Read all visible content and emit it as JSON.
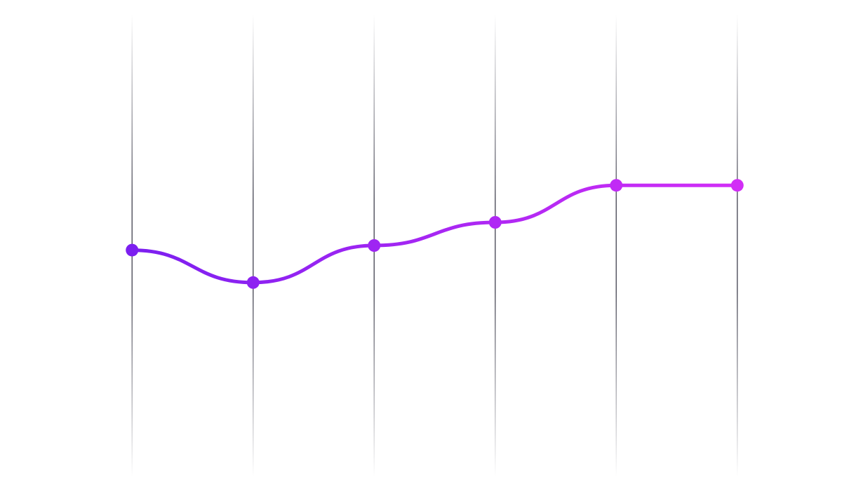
{
  "chart_data": {
    "type": "line",
    "categories": [
      null,
      null,
      null,
      null,
      null,
      null
    ],
    "series": [
      {
        "color": "#7c1ff0",
        "gradient_to": "#d22ef6",
        "values": [
          49,
          42,
          50,
          55,
          63,
          63
        ]
      }
    ],
    "ylim": [
      0,
      100
    ],
    "grid": true,
    "smooth": true,
    "markers": true
  }
}
